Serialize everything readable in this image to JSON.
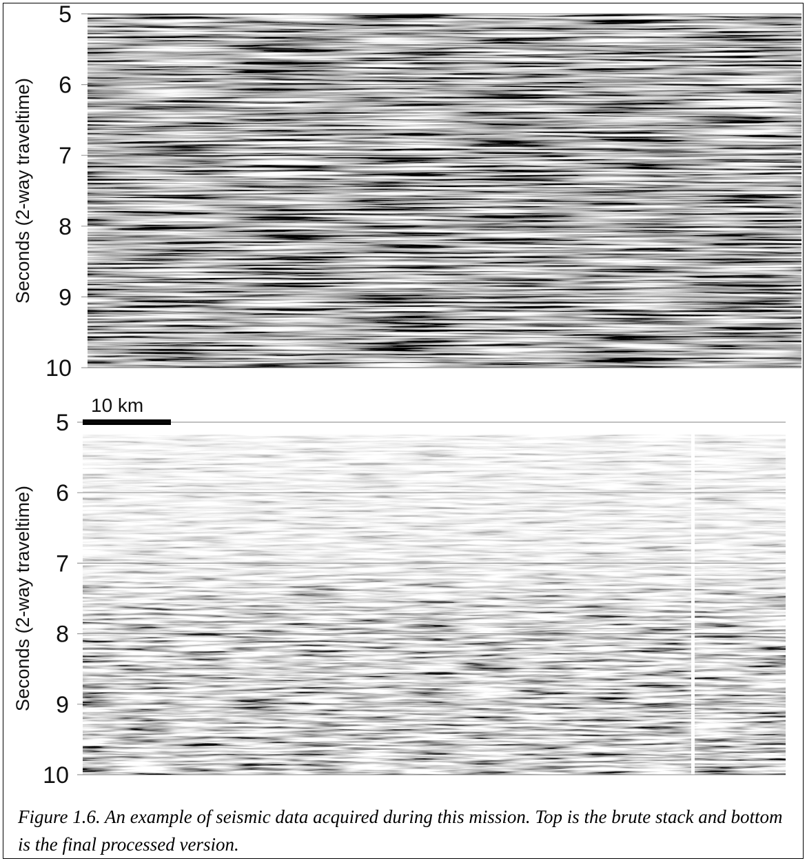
{
  "figure": {
    "panels": [
      {
        "ylabel": "Seconds (2-way traveltime)",
        "ylim": [
          5,
          10
        ],
        "yticks": [
          5,
          6,
          7,
          8,
          9,
          10
        ]
      },
      {
        "ylabel": "Seconds (2-way traveltime)",
        "ylim": [
          5,
          10
        ],
        "yticks": [
          5,
          6,
          7,
          8,
          9,
          10
        ],
        "scale_bar": "10 km"
      }
    ],
    "caption": "Figure 1.6.  An example of seismic data acquired during this mission. Top is the brute stack and bottom is the final processed version."
  }
}
